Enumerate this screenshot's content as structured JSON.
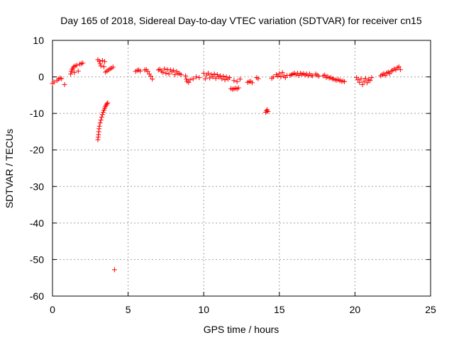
{
  "chart_data": {
    "type": "scatter",
    "title": "Day 165 of 2018, Sidereal Day-to-day VTEC variation (SDTVAR) for receiver cn15",
    "xlabel": "GPS time / hours",
    "ylabel": "SDTVAR / TECUs",
    "xlim": [
      0,
      25
    ],
    "ylim": [
      -60,
      10
    ],
    "xticks": [
      0,
      5,
      10,
      15,
      20,
      25
    ],
    "yticks": [
      10,
      0,
      -10,
      -20,
      -30,
      -40,
      -50,
      -60
    ],
    "xtick_labels": [
      "0",
      "5",
      "10",
      "15",
      "20",
      "25"
    ],
    "ytick_labels": [
      "10",
      "0",
      "-10",
      "-20",
      "-30",
      "-40",
      "-50",
      "-60"
    ],
    "grid": true,
    "marker": "+",
    "color": "#ff0000",
    "series": [
      {
        "name": "SDTVAR",
        "points": [
          [
            0.0,
            -1.8
          ],
          [
            0.1,
            -1.4
          ],
          [
            0.3,
            -1.0
          ],
          [
            0.4,
            -0.6
          ],
          [
            0.5,
            -0.3
          ],
          [
            0.6,
            -0.5
          ],
          [
            0.8,
            -2.1
          ],
          [
            1.2,
            0.8
          ],
          [
            1.25,
            1.5
          ],
          [
            1.3,
            2.0
          ],
          [
            1.35,
            2.4
          ],
          [
            1.4,
            2.8
          ],
          [
            1.45,
            1.2
          ],
          [
            1.5,
            3.0
          ],
          [
            1.6,
            3.2
          ],
          [
            1.7,
            1.6
          ],
          [
            1.8,
            3.5
          ],
          [
            1.9,
            3.6
          ],
          [
            2.0,
            3.8
          ],
          [
            3.0,
            4.7
          ],
          [
            3.1,
            4.3
          ],
          [
            3.15,
            3.6
          ],
          [
            3.2,
            3.0
          ],
          [
            3.3,
            4.5
          ],
          [
            3.4,
            2.8
          ],
          [
            3.45,
            4.2
          ],
          [
            3.5,
            1.3
          ],
          [
            3.6,
            1.6
          ],
          [
            3.7,
            1.9
          ],
          [
            3.8,
            2.2
          ],
          [
            3.9,
            2.4
          ],
          [
            4.0,
            2.7
          ],
          [
            3.0,
            -17.2
          ],
          [
            3.02,
            -16.5
          ],
          [
            3.04,
            -15.8
          ],
          [
            3.06,
            -15.0
          ],
          [
            3.08,
            -14.2
          ],
          [
            3.1,
            -13.5
          ],
          [
            3.15,
            -12.6
          ],
          [
            3.2,
            -11.8
          ],
          [
            3.25,
            -11.0
          ],
          [
            3.3,
            -10.3
          ],
          [
            3.35,
            -9.7
          ],
          [
            3.4,
            -9.1
          ],
          [
            3.45,
            -8.6
          ],
          [
            3.5,
            -8.1
          ],
          [
            3.55,
            -7.7
          ],
          [
            3.6,
            -7.4
          ],
          [
            3.65,
            -7.1
          ],
          [
            4.1,
            -52.8
          ],
          [
            5.5,
            1.5
          ],
          [
            5.6,
            1.8
          ],
          [
            5.7,
            1.9
          ],
          [
            5.8,
            1.6
          ],
          [
            6.1,
            1.9
          ],
          [
            6.2,
            2.0
          ],
          [
            6.3,
            1.5
          ],
          [
            6.4,
            0.8
          ],
          [
            6.5,
            0.2
          ],
          [
            6.6,
            -0.6
          ],
          [
            7.0,
            1.9
          ],
          [
            7.1,
            2.1
          ],
          [
            7.2,
            1.6
          ],
          [
            7.3,
            1.2
          ],
          [
            7.4,
            2.2
          ],
          [
            7.5,
            1.0
          ],
          [
            7.6,
            2.0
          ],
          [
            7.7,
            0.8
          ],
          [
            7.8,
            1.9
          ],
          [
            7.9,
            1.4
          ],
          [
            8.0,
            1.8
          ],
          [
            8.1,
            0.6
          ],
          [
            8.2,
            1.5
          ],
          [
            8.3,
            1.0
          ],
          [
            8.4,
            0.9
          ],
          [
            8.5,
            0.6
          ],
          [
            8.8,
            0.3
          ],
          [
            8.85,
            -0.6
          ],
          [
            8.9,
            -1.2
          ],
          [
            9.0,
            -1.5
          ],
          [
            9.1,
            -0.8
          ],
          [
            9.3,
            -0.5
          ],
          [
            9.5,
            0.0
          ],
          [
            9.7,
            -0.2
          ],
          [
            10.0,
            1.0
          ],
          [
            10.1,
            -0.5
          ],
          [
            10.2,
            0.5
          ],
          [
            10.3,
            1.0
          ],
          [
            10.4,
            -0.3
          ],
          [
            10.5,
            0.6
          ],
          [
            10.6,
            0.0
          ],
          [
            10.7,
            0.8
          ],
          [
            10.8,
            -0.4
          ],
          [
            10.9,
            0.6
          ],
          [
            11.0,
            0.0
          ],
          [
            11.1,
            0.3
          ],
          [
            11.2,
            -0.5
          ],
          [
            11.3,
            0.2
          ],
          [
            11.4,
            -0.8
          ],
          [
            11.5,
            0.0
          ],
          [
            11.6,
            -0.6
          ],
          [
            11.7,
            -0.2
          ],
          [
            11.8,
            -3.2
          ],
          [
            11.9,
            -3.4
          ],
          [
            12.0,
            -3.3
          ],
          [
            12.1,
            -3.1
          ],
          [
            12.2,
            -3.3
          ],
          [
            12.3,
            -3.0
          ],
          [
            12.0,
            -1.0
          ],
          [
            12.2,
            -1.3
          ],
          [
            12.4,
            -0.6
          ],
          [
            12.9,
            -1.5
          ],
          [
            13.0,
            -1.3
          ],
          [
            13.1,
            -1.2
          ],
          [
            13.2,
            -1.6
          ],
          [
            13.5,
            -0.2
          ],
          [
            13.6,
            -0.5
          ],
          [
            14.1,
            -9.7
          ],
          [
            14.15,
            -9.3
          ],
          [
            14.2,
            -9.0
          ],
          [
            14.25,
            -9.5
          ],
          [
            14.5,
            -0.4
          ],
          [
            14.6,
            0.0
          ],
          [
            14.8,
            0.6
          ],
          [
            14.9,
            0.2
          ],
          [
            15.0,
            0.9
          ],
          [
            15.1,
            0.0
          ],
          [
            15.2,
            1.2
          ],
          [
            15.3,
            0.3
          ],
          [
            15.4,
            -0.2
          ],
          [
            15.5,
            0.4
          ],
          [
            15.7,
            0.4
          ],
          [
            15.8,
            0.6
          ],
          [
            15.9,
            0.8
          ],
          [
            16.0,
            1.0
          ],
          [
            16.1,
            0.6
          ],
          [
            16.2,
            1.0
          ],
          [
            16.3,
            0.4
          ],
          [
            16.4,
            1.0
          ],
          [
            16.5,
            0.7
          ],
          [
            16.6,
            0.9
          ],
          [
            16.7,
            0.5
          ],
          [
            16.8,
            0.8
          ],
          [
            16.9,
            0.3
          ],
          [
            17.0,
            0.8
          ],
          [
            17.1,
            0.4
          ],
          [
            17.2,
            0.3
          ],
          [
            17.4,
            0.8
          ],
          [
            17.5,
            0.5
          ],
          [
            17.6,
            0.2
          ],
          [
            17.9,
            0.3
          ],
          [
            18.0,
            0.5
          ],
          [
            18.1,
            -0.2
          ],
          [
            18.2,
            0.1
          ],
          [
            18.3,
            -0.3
          ],
          [
            18.4,
            -0.2
          ],
          [
            18.5,
            -0.5
          ],
          [
            18.6,
            -0.6
          ],
          [
            18.7,
            -0.8
          ],
          [
            18.8,
            -0.9
          ],
          [
            18.9,
            -0.7
          ],
          [
            19.0,
            -1.0
          ],
          [
            19.1,
            -1.2
          ],
          [
            19.2,
            -1.1
          ],
          [
            19.3,
            -1.3
          ],
          [
            20.1,
            -0.2
          ],
          [
            20.2,
            -0.8
          ],
          [
            20.3,
            -1.5
          ],
          [
            20.4,
            -0.5
          ],
          [
            20.5,
            -2.1
          ],
          [
            20.6,
            -1.2
          ],
          [
            20.7,
            -0.4
          ],
          [
            20.8,
            -1.6
          ],
          [
            20.9,
            -0.8
          ],
          [
            21.0,
            -1.0
          ],
          [
            21.1,
            -0.2
          ],
          [
            21.7,
            0.3
          ],
          [
            21.8,
            0.6
          ],
          [
            21.9,
            0.9
          ],
          [
            22.0,
            0.4
          ],
          [
            22.1,
            1.1
          ],
          [
            22.2,
            1.3
          ],
          [
            22.3,
            0.9
          ],
          [
            22.4,
            1.6
          ],
          [
            22.5,
            1.8
          ],
          [
            22.6,
            2.2
          ],
          [
            22.7,
            1.9
          ],
          [
            22.8,
            2.5
          ],
          [
            22.9,
            2.8
          ],
          [
            23.0,
            2.0
          ]
        ]
      }
    ]
  }
}
